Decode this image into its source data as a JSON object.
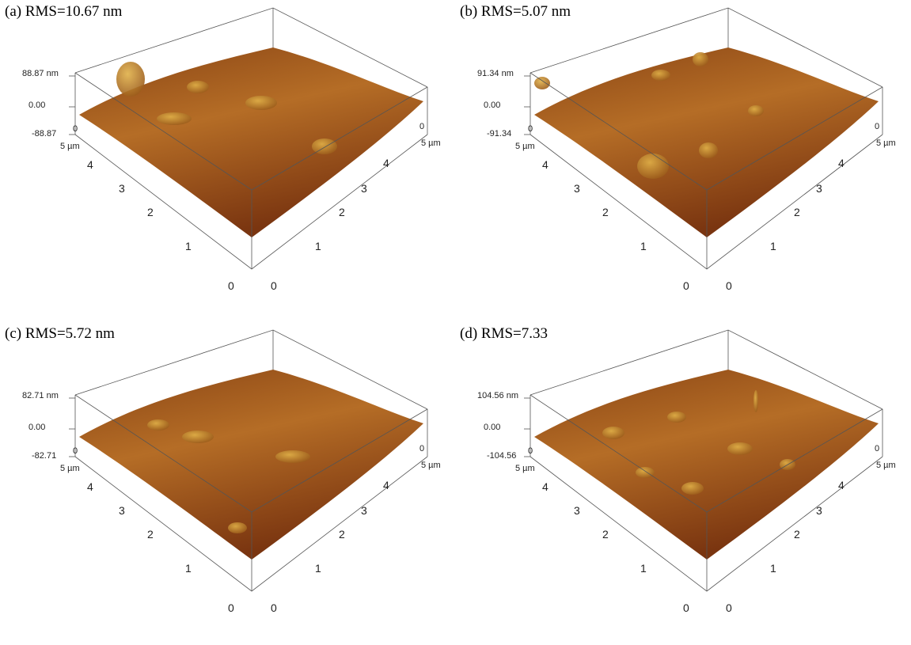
{
  "panels": [
    {
      "title": "(a) RMS=10.67 nm",
      "z_labels": [
        "88.87 nm",
        "0.00",
        "-88.87"
      ],
      "corner": "0",
      "left_axis": [
        "5 µm",
        "4",
        "3",
        "2",
        "1",
        "0"
      ],
      "right_axis": [
        "0",
        "5 µm",
        "4",
        "3",
        "2",
        "1",
        "0"
      ]
    },
    {
      "title": "(b) RMS=5.07 nm",
      "z_labels": [
        "91.34 nm",
        "0.00",
        "-91.34"
      ],
      "corner": "0",
      "left_axis": [
        "5 µm",
        "4",
        "3",
        "2",
        "1",
        "0"
      ],
      "right_axis": [
        "0",
        "5 µm",
        "4",
        "3",
        "2",
        "1",
        "0"
      ]
    },
    {
      "title": "(c) RMS=5.72 nm",
      "z_labels": [
        "82.71 nm",
        "0.00",
        "-82.71"
      ],
      "corner": "0",
      "left_axis": [
        "5 µm",
        "4",
        "3",
        "2",
        "1",
        "0"
      ],
      "right_axis": [
        "0",
        "5 µm",
        "4",
        "3",
        "2",
        "1",
        "0"
      ]
    },
    {
      "title": "(d) RMS=7.33",
      "z_labels": [
        "104.56 nm",
        "0.00",
        "-104.56"
      ],
      "corner": "0",
      "left_axis": [
        "5 µm",
        "4",
        "3",
        "2",
        "1",
        "0"
      ],
      "right_axis": [
        "0",
        "5 µm",
        "4",
        "3",
        "2",
        "1",
        "0"
      ]
    }
  ]
}
